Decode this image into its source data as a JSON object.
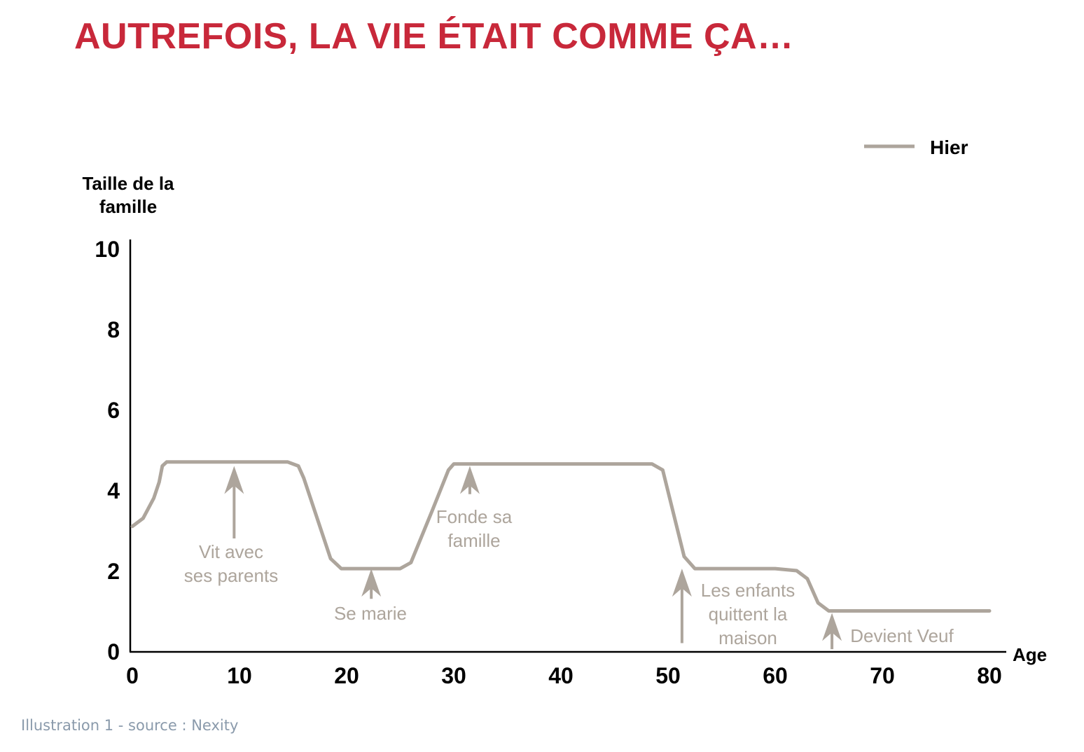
{
  "title": "AUTREFOIS, LA VIE ÉTAIT COMME ÇA…",
  "caption": "Illustration 1 - source : Nexity",
  "colors": {
    "title": "#c8283a",
    "series": "#ada59c",
    "caption": "#8a9aab",
    "axis": "#000000"
  },
  "chart_data": {
    "type": "line",
    "ylabel": [
      "Taille de la",
      "famille"
    ],
    "xlabel": "Age",
    "xlim": [
      0,
      80
    ],
    "ylim": [
      0,
      10
    ],
    "xticks": [
      0,
      10,
      20,
      30,
      40,
      50,
      60,
      70,
      80
    ],
    "yticks": [
      0,
      2,
      4,
      6,
      8,
      10
    ],
    "grid": false,
    "legend": {
      "position": "top-right"
    },
    "series": [
      {
        "name": "Hier",
        "x": [
          0,
          1,
          2,
          2.5,
          2.8,
          3.2,
          5,
          10,
          14.5,
          15.5,
          16,
          18.5,
          19.5,
          25,
          26,
          28,
          29.5,
          30,
          35,
          40,
          48.5,
          49.5,
          51.5,
          52.5,
          55,
          60,
          62,
          63,
          64,
          65,
          70,
          80
        ],
        "y": [
          3.1,
          3.3,
          3.8,
          4.2,
          4.6,
          4.7,
          4.7,
          4.7,
          4.7,
          4.6,
          4.3,
          2.3,
          2.05,
          2.05,
          2.2,
          3.5,
          4.5,
          4.65,
          4.65,
          4.65,
          4.65,
          4.5,
          2.35,
          2.05,
          2.05,
          2.05,
          2.0,
          1.8,
          1.2,
          1.0,
          1.0,
          1.0
        ]
      }
    ],
    "annotations": [
      {
        "lines": [
          "Vit avec",
          "ses parents"
        ],
        "arrow_x": 9.5,
        "arrow_from": 2.8,
        "arrow_to": 4.6
      },
      {
        "lines": [
          "Se marie"
        ],
        "arrow_x": 22.3,
        "arrow_from": 1.3,
        "arrow_to": 2.05
      },
      {
        "lines": [
          "Fonde sa",
          "famille"
        ],
        "arrow_x": 31.5,
        "arrow_from": 3.9,
        "arrow_to": 4.6
      },
      {
        "lines": [
          "Les enfants",
          "quittent la",
          "maison"
        ],
        "arrow_x": 51.3,
        "arrow_from": 0.2,
        "arrow_to": 2.05
      },
      {
        "lines": [
          "Devient Veuf"
        ],
        "arrow_x": 65.3,
        "arrow_from": 0.05,
        "arrow_to": 0.95
      }
    ]
  }
}
